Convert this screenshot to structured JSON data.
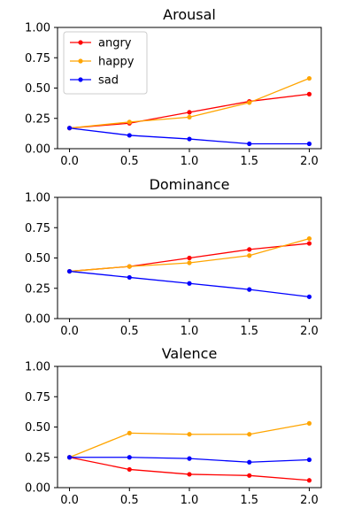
{
  "chart_data": [
    {
      "type": "line",
      "title": "Arousal",
      "xlabel": "",
      "ylabel": "",
      "x": [
        0.0,
        0.5,
        1.0,
        1.5,
        2.0
      ],
      "xlim": [
        -0.1,
        2.1
      ],
      "ylim": [
        0.0,
        1.0
      ],
      "xticks": [
        "0.0",
        "0.5",
        "1.0",
        "1.5",
        "2.0"
      ],
      "yticks": [
        "0.00",
        "0.25",
        "0.50",
        "0.75",
        "1.00"
      ],
      "grid": false,
      "legend": "top-left",
      "series": [
        {
          "name": "angry",
          "color": "#ff0000",
          "values": [
            0.17,
            0.21,
            0.3,
            0.39,
            0.45
          ]
        },
        {
          "name": "happy",
          "color": "#ffa500",
          "values": [
            0.17,
            0.22,
            0.26,
            0.38,
            0.58
          ]
        },
        {
          "name": "sad",
          "color": "#0000ff",
          "values": [
            0.17,
            0.11,
            0.08,
            0.04,
            0.04
          ]
        }
      ]
    },
    {
      "type": "line",
      "title": "Dominance",
      "xlabel": "",
      "ylabel": "",
      "x": [
        0.0,
        0.5,
        1.0,
        1.5,
        2.0
      ],
      "xlim": [
        -0.1,
        2.1
      ],
      "ylim": [
        0.0,
        1.0
      ],
      "xticks": [
        "0.0",
        "0.5",
        "1.0",
        "1.5",
        "2.0"
      ],
      "yticks": [
        "0.00",
        "0.25",
        "0.50",
        "0.75",
        "1.00"
      ],
      "grid": false,
      "series": [
        {
          "name": "angry",
          "color": "#ff0000",
          "values": [
            0.39,
            0.43,
            0.5,
            0.57,
            0.62
          ]
        },
        {
          "name": "happy",
          "color": "#ffa500",
          "values": [
            0.39,
            0.43,
            0.46,
            0.52,
            0.66
          ]
        },
        {
          "name": "sad",
          "color": "#0000ff",
          "values": [
            0.39,
            0.34,
            0.29,
            0.24,
            0.18
          ]
        }
      ]
    },
    {
      "type": "line",
      "title": "Valence",
      "xlabel": "",
      "ylabel": "",
      "x": [
        0.0,
        0.5,
        1.0,
        1.5,
        2.0
      ],
      "xlim": [
        -0.1,
        2.1
      ],
      "ylim": [
        0.0,
        1.0
      ],
      "xticks": [
        "0.0",
        "0.5",
        "1.0",
        "1.5",
        "2.0"
      ],
      "yticks": [
        "0.00",
        "0.25",
        "0.50",
        "0.75",
        "1.00"
      ],
      "grid": false,
      "series": [
        {
          "name": "angry",
          "color": "#ff0000",
          "values": [
            0.25,
            0.15,
            0.11,
            0.1,
            0.06
          ]
        },
        {
          "name": "happy",
          "color": "#ffa500",
          "values": [
            0.25,
            0.45,
            0.44,
            0.44,
            0.53
          ]
        },
        {
          "name": "sad",
          "color": "#0000ff",
          "values": [
            0.25,
            0.25,
            0.24,
            0.21,
            0.23
          ]
        }
      ]
    }
  ]
}
